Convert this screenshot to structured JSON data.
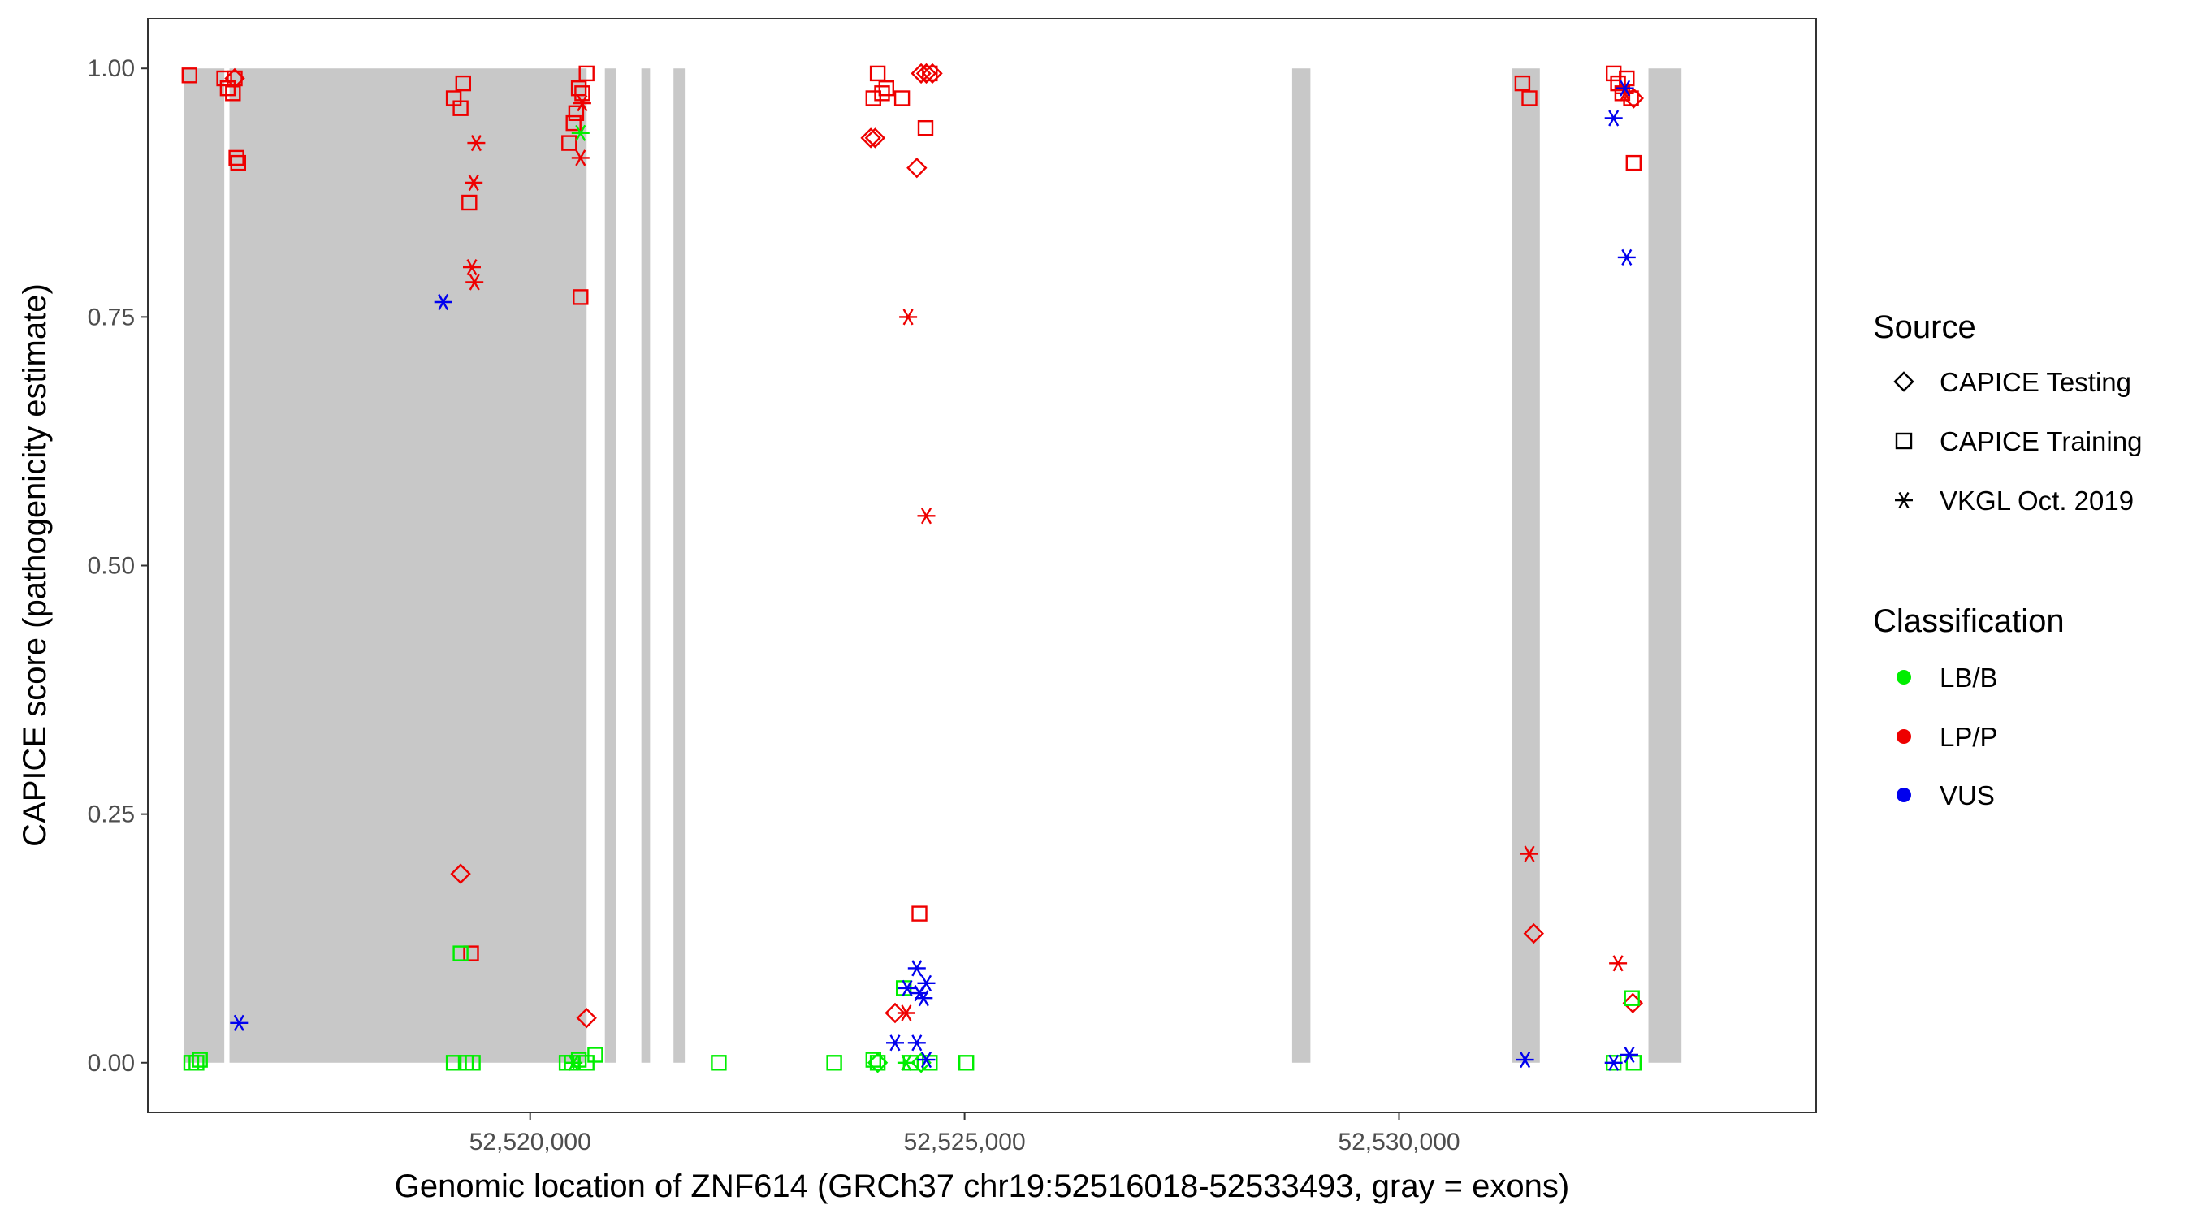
{
  "chart_data": {
    "type": "scatter",
    "title": "",
    "xlabel": "Genomic location of ZNF614 (GRCh37 chr19:52516018-52533493, gray = exons)",
    "ylabel": "CAPICE score (pathogenicity estimate)",
    "xlim": [
      52515600,
      52534800
    ],
    "ylim": [
      -0.05,
      1.05
    ],
    "x_ticks": [
      52520000,
      52525000,
      52530000
    ],
    "x_tick_labels": [
      "52,520,000",
      "52,525,000",
      "52,530,000"
    ],
    "y_ticks": [
      0,
      0.25,
      0.5,
      0.75,
      1.0
    ],
    "y_tick_labels": [
      "0.00",
      "0.25",
      "0.50",
      "0.75",
      "1.00"
    ],
    "grid": false,
    "exons": [
      [
        52516018,
        52516480
      ],
      [
        52516540,
        52520650
      ],
      [
        52520860,
        52520990
      ],
      [
        52521280,
        52521380
      ],
      [
        52521650,
        52521780
      ],
      [
        52528770,
        52528980
      ],
      [
        52531300,
        52531620
      ],
      [
        52532870,
        52533250
      ]
    ],
    "legend_source": {
      "title": "Source",
      "entries": [
        {
          "label": "CAPICE Testing",
          "shape": "diamond"
        },
        {
          "label": "CAPICE Training",
          "shape": "square"
        },
        {
          "label": "VKGL Oct. 2019",
          "shape": "asterisk"
        }
      ]
    },
    "legend_classification": {
      "title": "Classification",
      "entries": [
        {
          "label": "LB/B",
          "color": "#00ee00"
        },
        {
          "label": "LP/P",
          "color": "#ee0000"
        },
        {
          "label": "VUS",
          "color": "#0000ee"
        }
      ]
    },
    "legend_position": "right",
    "series": [
      {
        "source": "CAPICE Testing",
        "classification": "LP/P",
        "points": [
          [
            52516600,
            0.99
          ],
          [
            52519200,
            0.19
          ],
          [
            52520650,
            0.045
          ],
          [
            52523920,
            0.93
          ],
          [
            52523970,
            0.93
          ],
          [
            52524450,
            0.9
          ],
          [
            52524500,
            0.995
          ],
          [
            52524560,
            0.995
          ],
          [
            52524630,
            0.995
          ],
          [
            52524200,
            0.05
          ],
          [
            52531550,
            0.13
          ],
          [
            52532690,
            0.06
          ],
          [
            52532700,
            0.97
          ]
        ]
      },
      {
        "source": "CAPICE Testing",
        "classification": "LB/B",
        "points": [
          [
            52524000,
            0.0
          ],
          [
            52524500,
            0.0
          ]
        ]
      },
      {
        "source": "CAPICE Training",
        "classification": "LP/P",
        "points": [
          [
            52516080,
            0.993
          ],
          [
            52516480,
            0.99
          ],
          [
            52516520,
            0.98
          ],
          [
            52516580,
            0.975
          ],
          [
            52516600,
            0.99
          ],
          [
            52516620,
            0.91
          ],
          [
            52516640,
            0.905
          ],
          [
            52519120,
            0.97
          ],
          [
            52519200,
            0.96
          ],
          [
            52519230,
            0.985
          ],
          [
            52519300,
            0.865
          ],
          [
            52519320,
            0.11
          ],
          [
            52520450,
            0.925
          ],
          [
            52520500,
            0.945
          ],
          [
            52520530,
            0.955
          ],
          [
            52520560,
            0.98
          ],
          [
            52520580,
            0.77
          ],
          [
            52520600,
            0.975
          ],
          [
            52520650,
            0.995
          ],
          [
            52523950,
            0.97
          ],
          [
            52524000,
            0.995
          ],
          [
            52524050,
            0.975
          ],
          [
            52524100,
            0.98
          ],
          [
            52524280,
            0.97
          ],
          [
            52524480,
            0.15
          ],
          [
            52524550,
            0.94
          ],
          [
            52524600,
            0.995
          ],
          [
            52531420,
            0.985
          ],
          [
            52531500,
            0.97
          ],
          [
            52532470,
            0.995
          ],
          [
            52532520,
            0.985
          ],
          [
            52532570,
            0.975
          ],
          [
            52532620,
            0.99
          ],
          [
            52532670,
            0.97
          ],
          [
            52532700,
            0.905
          ]
        ]
      },
      {
        "source": "CAPICE Training",
        "classification": "LB/B",
        "points": [
          [
            52516100,
            0.0
          ],
          [
            52516160,
            0.0
          ],
          [
            52516200,
            0.003
          ],
          [
            52519120,
            0.0
          ],
          [
            52519200,
            0.11
          ],
          [
            52519260,
            0.0
          ],
          [
            52519340,
            0.0
          ],
          [
            52520420,
            0.0
          ],
          [
            52520480,
            0.0
          ],
          [
            52520560,
            0.003
          ],
          [
            52520650,
            0.0
          ],
          [
            52520750,
            0.008
          ],
          [
            52522170,
            0.0
          ],
          [
            52523500,
            0.0
          ],
          [
            52523950,
            0.003
          ],
          [
            52524000,
            0.0
          ],
          [
            52524300,
            0.075
          ],
          [
            52524380,
            0.0
          ],
          [
            52524600,
            0.0
          ],
          [
            52525020,
            0.0
          ],
          [
            52532470,
            0.0
          ],
          [
            52532680,
            0.065
          ],
          [
            52532700,
            0.0
          ]
        ]
      },
      {
        "source": "VKGL Oct. 2019",
        "classification": "LP/P",
        "points": [
          [
            52519380,
            0.925
          ],
          [
            52519350,
            0.885
          ],
          [
            52519330,
            0.8
          ],
          [
            52519360,
            0.785
          ],
          [
            52520600,
            0.965
          ],
          [
            52520580,
            0.91
          ],
          [
            52524350,
            0.75
          ],
          [
            52524560,
            0.55
          ],
          [
            52524330,
            0.05
          ],
          [
            52531500,
            0.21
          ],
          [
            52532520,
            0.1
          ],
          [
            52532600,
            0.975
          ]
        ]
      },
      {
        "source": "VKGL Oct. 2019",
        "classification": "LB/B",
        "points": [
          [
            52520580,
            0.935
          ],
          [
            52520500,
            0.0
          ],
          [
            52524330,
            0.0
          ]
        ]
      },
      {
        "source": "VKGL Oct. 2019",
        "classification": "VUS",
        "points": [
          [
            52516650,
            0.04
          ],
          [
            52519000,
            0.765
          ],
          [
            52524200,
            0.02
          ],
          [
            52524340,
            0.075
          ],
          [
            52524450,
            0.095
          ],
          [
            52524480,
            0.07
          ],
          [
            52524530,
            0.065
          ],
          [
            52524560,
            0.08
          ],
          [
            52524450,
            0.02
          ],
          [
            52524560,
            0.003
          ],
          [
            52531450,
            0.003
          ],
          [
            52532470,
            0.95
          ],
          [
            52532600,
            0.98
          ],
          [
            52532620,
            0.81
          ],
          [
            52532650,
            0.008
          ],
          [
            52532470,
            0.0
          ]
        ]
      }
    ]
  }
}
